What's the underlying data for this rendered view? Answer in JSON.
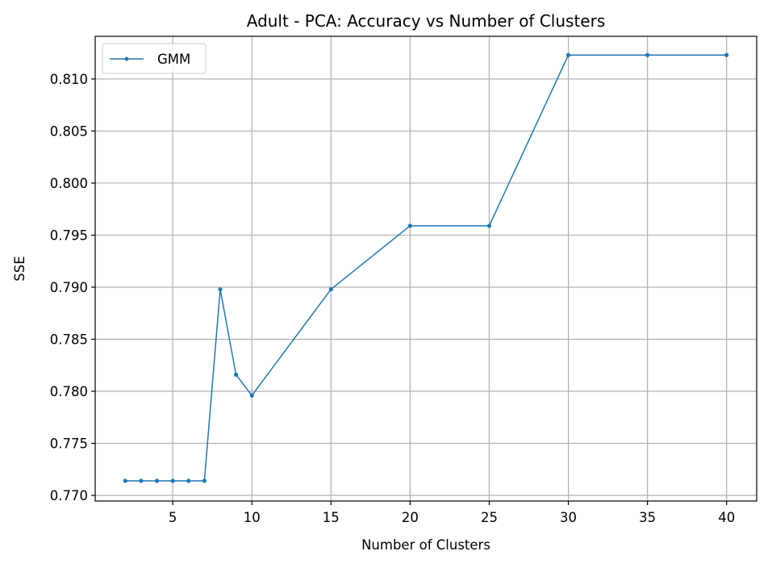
{
  "chart_data": {
    "type": "line",
    "title": "Adult - PCA: Accuracy vs Number of Clusters",
    "xlabel": "Number of Clusters",
    "ylabel": "SSE",
    "x": [
      2,
      3,
      4,
      5,
      6,
      7,
      8,
      9,
      10,
      15,
      20,
      25,
      30,
      35,
      40
    ],
    "series": [
      {
        "name": "GMM",
        "color": "#1f77b4",
        "marker": "circle",
        "values": [
          0.7714,
          0.7714,
          0.7714,
          0.7714,
          0.7714,
          0.7714,
          0.7898,
          0.7816,
          0.7796,
          0.7898,
          0.7959,
          0.7959,
          0.8123,
          0.8123,
          0.8123
        ]
      }
    ],
    "xlim": [
      0.1,
      41.9
    ],
    "ylim": [
      0.76946,
      0.8141
    ],
    "xticks": [
      5,
      10,
      15,
      20,
      25,
      30,
      35,
      40
    ],
    "xtick_labels": [
      "5",
      "10",
      "15",
      "20",
      "25",
      "30",
      "35",
      "40"
    ],
    "yticks": [
      0.77,
      0.775,
      0.78,
      0.785,
      0.79,
      0.795,
      0.8,
      0.805,
      0.81
    ],
    "ytick_labels": [
      "0.770",
      "0.775",
      "0.780",
      "0.785",
      "0.790",
      "0.795",
      "0.800",
      "0.805",
      "0.810"
    ],
    "grid": true,
    "legend_position": "top-left"
  }
}
